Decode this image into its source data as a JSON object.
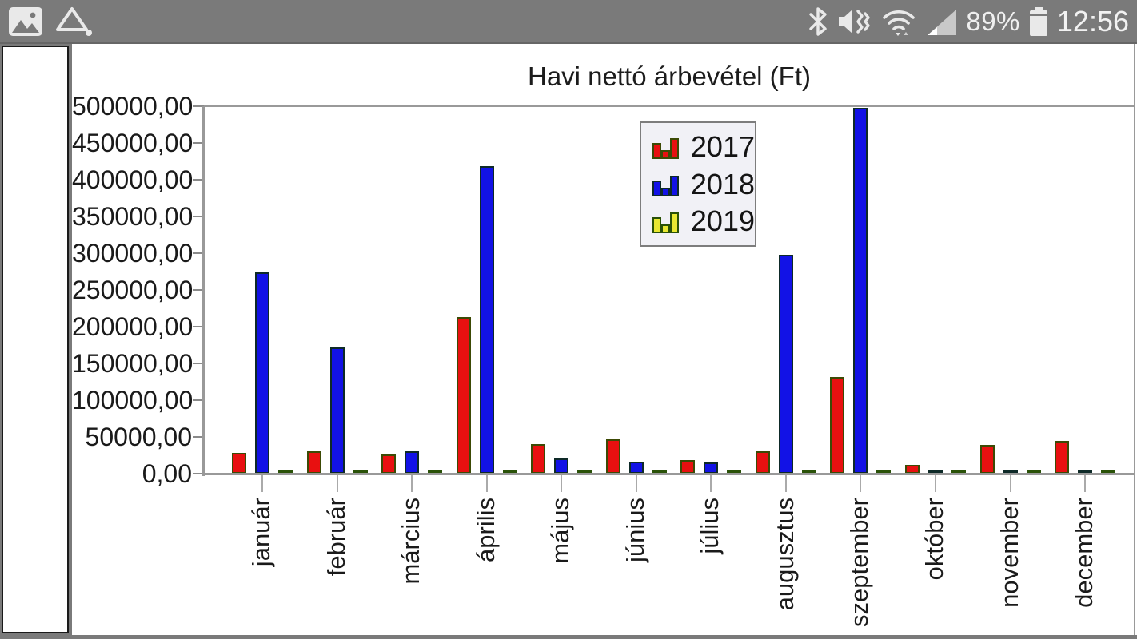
{
  "status_bar": {
    "time": "12:56",
    "battery_percent": "89%",
    "bg_color": "#7a7a7a",
    "icons": [
      "gallery-icon",
      "a-triangle-app-icon",
      "bluetooth-icon",
      "mute-vibrate-icon",
      "wifi-icon",
      "cell-signal-icon",
      "battery-icon"
    ]
  },
  "chart_data": {
    "type": "bar",
    "title": "Havi nettó árbevétel (Ft)",
    "categories": [
      "január",
      "február",
      "március",
      "április",
      "május",
      "június",
      "július",
      "augusztus",
      "szeptember",
      "október",
      "november",
      "december"
    ],
    "series": [
      {
        "name": "2017",
        "color": "#e81010",
        "border": "#3c4a05",
        "values": [
          28000,
          30000,
          26000,
          213000,
          40000,
          47000,
          18000,
          30000,
          131000,
          12000,
          39000,
          45000
        ]
      },
      {
        "name": "2018",
        "color": "#1212e6",
        "border": "#0e2a28",
        "values": [
          274000,
          172000,
          30000,
          418000,
          21000,
          16000,
          15000,
          298000,
          498000,
          2000,
          2000,
          2000
        ]
      },
      {
        "name": "2019",
        "color": "#e8e832",
        "border": "#2a5208",
        "values": [
          2000,
          2000,
          2000,
          2000,
          2000,
          2000,
          2000,
          2000,
          2000,
          2000,
          2000,
          2000
        ]
      }
    ],
    "ylim": [
      0,
      500000
    ],
    "ytick_step": 50000,
    "ytick_labels": [
      "0,00",
      "50000,00",
      "100000,00",
      "150000,00",
      "200000,00",
      "250000,00",
      "300000,00",
      "350000,00",
      "400000,00",
      "450000,00",
      "500000,00"
    ],
    "grid": false,
    "legend_position": "top-center-inside"
  }
}
